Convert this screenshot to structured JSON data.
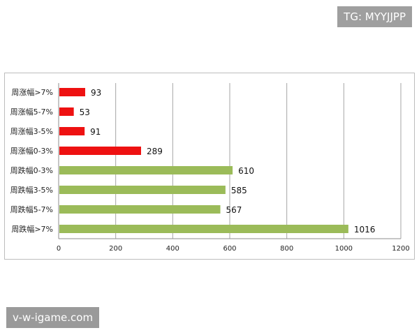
{
  "watermarks": {
    "top_right": "TG: MYYJJPP",
    "bottom_left": "v-w-igame.com"
  },
  "chart_data": {
    "type": "bar",
    "orientation": "horizontal",
    "title": "",
    "xlabel": "",
    "ylabel": "",
    "xlim": [
      0,
      1200
    ],
    "x_ticks": [
      0,
      200,
      400,
      600,
      800,
      1000,
      1200
    ],
    "grid": "vertical",
    "legend": "none",
    "categories": [
      "周涨幅>7%",
      "周涨幅5-7%",
      "周涨幅3-5%",
      "周涨幅0-3%",
      "周跌幅0-3%",
      "周跌幅3-5%",
      "周跌幅5-7%",
      "周跌幅>7%"
    ],
    "values": [
      93,
      53,
      91,
      289,
      610,
      585,
      567,
      1016
    ],
    "colors": [
      "#ee1111",
      "#ee1111",
      "#ee1111",
      "#ee1111",
      "#9bbb59",
      "#9bbb59",
      "#9bbb59",
      "#9bbb59"
    ]
  }
}
